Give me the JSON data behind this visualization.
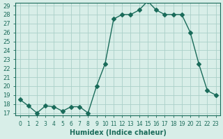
{
  "x": [
    0,
    1,
    2,
    3,
    4,
    5,
    6,
    7,
    8,
    9,
    10,
    11,
    12,
    13,
    14,
    15,
    16,
    17,
    18,
    19,
    20,
    21,
    22,
    23
  ],
  "y": [
    18.5,
    17.8,
    17.0,
    17.8,
    17.7,
    17.2,
    17.7,
    17.7,
    17.0,
    20.0,
    22.5,
    27.5,
    28.0,
    28.0,
    28.5,
    29.5,
    28.5,
    28.0,
    28.0,
    28.0,
    26.0,
    22.5,
    19.5,
    19.0
  ],
  "line_color": "#1a6b5a",
  "marker": "D",
  "marker_size": 3,
  "bg_color": "#d8eee8",
  "grid_color": "#aacfc8",
  "xlabel": "Humidex (Indice chaleur)",
  "ylabel": "",
  "title": "",
  "xlim": [
    -0.5,
    23.5
  ],
  "ylim": [
    17,
    29
  ],
  "yticks": [
    17,
    18,
    19,
    20,
    21,
    22,
    23,
    24,
    25,
    26,
    27,
    28,
    29
  ],
  "xticks": [
    0,
    1,
    2,
    3,
    4,
    5,
    6,
    7,
    8,
    9,
    10,
    11,
    12,
    13,
    14,
    15,
    16,
    17,
    18,
    19,
    20,
    21,
    22,
    23
  ],
  "xtick_labels": [
    "0",
    "1",
    "2",
    "3",
    "4",
    "5",
    "6",
    "7",
    "8",
    "9",
    "10",
    "11",
    "12",
    "13",
    "14",
    "15",
    "16",
    "17",
    "18",
    "19",
    "20",
    "21",
    "22",
    "23"
  ],
  "font_color": "#1a6b5a",
  "axis_color": "#1a6b5a"
}
